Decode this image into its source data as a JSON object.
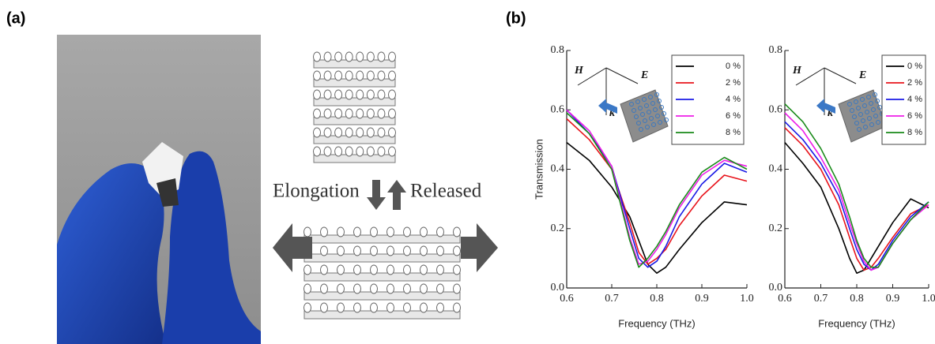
{
  "panel_labels": [
    "(a)",
    "(b)"
  ],
  "diagram": {
    "elongation": "Elongation",
    "released": "Released"
  },
  "chart_data": [
    {
      "type": "line",
      "y_label": "Transmission",
      "x_label": "Frequency (THz)",
      "inset_labels": [
        "H",
        "E",
        "k"
      ],
      "x": [
        0.6,
        0.65,
        0.7,
        0.74,
        0.76,
        0.78,
        0.8,
        0.82,
        0.85,
        0.9,
        0.95,
        1.0
      ],
      "xlim": [
        0.6,
        1.0
      ],
      "ylim": [
        0,
        0.8
      ],
      "xticks": [
        0.6,
        0.7,
        0.8,
        0.9,
        {
          "value": 1,
          "label": "1.0"
        }
      ],
      "yticks": [
        {
          "value": 0,
          "label": "0.0"
        },
        0.2,
        0.4,
        0.6,
        0.8
      ],
      "legend": "upper right",
      "series": [
        {
          "name": "0 %",
          "color": "#000000",
          "values": [
            0.49,
            0.43,
            0.34,
            0.24,
            0.16,
            0.08,
            0.05,
            0.07,
            0.13,
            0.22,
            0.29,
            0.28
          ]
        },
        {
          "name": "2 %",
          "color": "#e8141c",
          "values": [
            0.57,
            0.5,
            0.4,
            0.22,
            0.12,
            0.08,
            0.1,
            0.13,
            0.21,
            0.31,
            0.38,
            0.36
          ]
        },
        {
          "name": "4 %",
          "color": "#1a1ae6",
          "values": [
            0.6,
            0.52,
            0.41,
            0.2,
            0.1,
            0.07,
            0.09,
            0.14,
            0.24,
            0.35,
            0.42,
            0.39
          ]
        },
        {
          "name": "6 %",
          "color": "#ee1ee8",
          "values": [
            0.6,
            0.53,
            0.41,
            0.17,
            0.08,
            0.09,
            0.13,
            0.18,
            0.27,
            0.38,
            0.43,
            0.41
          ]
        },
        {
          "name": "8 %",
          "color": "#1a8a1a",
          "values": [
            0.59,
            0.52,
            0.4,
            0.16,
            0.07,
            0.1,
            0.14,
            0.19,
            0.28,
            0.39,
            0.44,
            0.4
          ]
        }
      ]
    },
    {
      "type": "line",
      "x_label": "Frequency (THz)",
      "inset_labels": [
        "H",
        "E",
        "k"
      ],
      "x": [
        0.6,
        0.65,
        0.7,
        0.75,
        0.78,
        0.8,
        0.82,
        0.84,
        0.86,
        0.9,
        0.95,
        1.0
      ],
      "xlim": [
        0.6,
        1.0
      ],
      "ylim": [
        0,
        0.8
      ],
      "xticks": [
        0.6,
        0.7,
        0.8,
        0.9,
        {
          "value": 1,
          "label": "1.0"
        }
      ],
      "yticks": [
        {
          "value": 0,
          "label": "0.0"
        },
        0.2,
        0.4,
        0.6,
        0.8
      ],
      "legend": "upper right",
      "series": [
        {
          "name": "0 %",
          "color": "#000000",
          "values": [
            0.49,
            0.42,
            0.34,
            0.2,
            0.1,
            0.05,
            0.06,
            0.1,
            0.14,
            0.22,
            0.3,
            0.27
          ]
        },
        {
          "name": "2 %",
          "color": "#e8141c",
          "values": [
            0.54,
            0.48,
            0.4,
            0.28,
            0.17,
            0.1,
            0.06,
            0.07,
            0.1,
            0.17,
            0.25,
            0.28
          ]
        },
        {
          "name": "4 %",
          "color": "#1a1ae6",
          "values": [
            0.56,
            0.5,
            0.42,
            0.31,
            0.2,
            0.13,
            0.08,
            0.06,
            0.08,
            0.16,
            0.24,
            0.29
          ]
        },
        {
          "name": "6 %",
          "color": "#ee1ee8",
          "values": [
            0.59,
            0.53,
            0.44,
            0.33,
            0.22,
            0.15,
            0.09,
            0.06,
            0.07,
            0.15,
            0.23,
            0.28
          ]
        },
        {
          "name": "8 %",
          "color": "#1a8a1a",
          "values": [
            0.62,
            0.56,
            0.47,
            0.35,
            0.24,
            0.16,
            0.1,
            0.07,
            0.07,
            0.15,
            0.23,
            0.29
          ]
        }
      ]
    }
  ]
}
